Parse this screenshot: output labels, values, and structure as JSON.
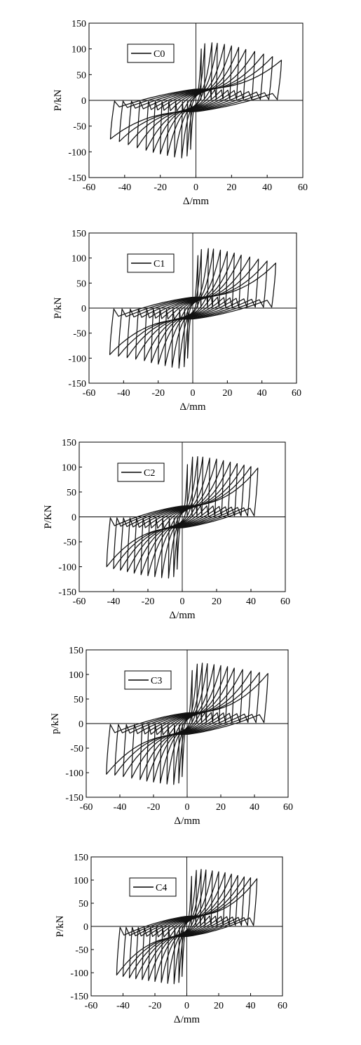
{
  "chart_data": [
    {
      "type": "line",
      "title": "",
      "legend": "C0",
      "legend_position": "top-left",
      "xlabel": "Δ/mm",
      "ylabel": "P/kN",
      "xlim": [
        -60,
        60
      ],
      "ylim": [
        -150,
        150
      ],
      "xticks": [
        -60,
        -40,
        -20,
        0,
        20,
        40,
        60
      ],
      "yticks": [
        -150,
        -100,
        -50,
        0,
        50,
        100,
        150
      ],
      "zero_lines": true,
      "grid": false,
      "cycle_peaks_pos": [
        [
          3,
          100
        ],
        [
          5,
          110
        ],
        [
          9,
          112
        ],
        [
          12,
          111
        ],
        [
          16,
          109
        ],
        [
          20,
          106
        ],
        [
          24,
          103
        ],
        [
          28,
          99
        ],
        [
          33,
          95
        ],
        [
          38,
          90
        ],
        [
          43,
          85
        ],
        [
          48,
          78
        ]
      ],
      "cycle_peaks_neg": [
        [
          -3,
          -95
        ],
        [
          -5,
          -108
        ],
        [
          -8,
          -112
        ],
        [
          -12,
          -110
        ],
        [
          -16,
          -107
        ],
        [
          -20,
          -104
        ],
        [
          -24,
          -101
        ],
        [
          -28,
          -97
        ],
        [
          -33,
          -92
        ],
        [
          -38,
          -86
        ],
        [
          -43,
          -80
        ],
        [
          -48,
          -75
        ]
      ]
    },
    {
      "type": "line",
      "title": "",
      "legend": "C1",
      "legend_position": "top-left",
      "xlabel": "Δ/mm",
      "ylabel": "P/kN",
      "xlim": [
        -60,
        60
      ],
      "ylim": [
        -150,
        150
      ],
      "xticks": [
        -60,
        -40,
        -20,
        0,
        20,
        40,
        60
      ],
      "yticks": [
        -150,
        -100,
        -50,
        0,
        50,
        100,
        150
      ],
      "zero_lines": true,
      "grid": false,
      "cycle_peaks_pos": [
        [
          3,
          105
        ],
        [
          5,
          117
        ],
        [
          9,
          119
        ],
        [
          12,
          118
        ],
        [
          16,
          116
        ],
        [
          20,
          113
        ],
        [
          24,
          110
        ],
        [
          28,
          106
        ],
        [
          33,
          102
        ],
        [
          38,
          98
        ],
        [
          43,
          94
        ],
        [
          48,
          90
        ]
      ],
      "cycle_peaks_neg": [
        [
          -3,
          -100
        ],
        [
          -5,
          -117
        ],
        [
          -8,
          -120
        ],
        [
          -12,
          -118
        ],
        [
          -16,
          -115
        ],
        [
          -20,
          -112
        ],
        [
          -24,
          -109
        ],
        [
          -28,
          -105
        ],
        [
          -33,
          -102
        ],
        [
          -38,
          -99
        ],
        [
          -43,
          -96
        ],
        [
          -48,
          -93
        ]
      ]
    },
    {
      "type": "line",
      "title": "",
      "legend": "C2",
      "legend_position": "top-left",
      "xlabel": "Δ/mm",
      "ylabel": "P/KN",
      "xlim": [
        -60,
        60
      ],
      "ylim": [
        -150,
        150
      ],
      "xticks": [
        -60,
        -40,
        -20,
        0,
        20,
        40,
        60
      ],
      "yticks": [
        -150,
        -100,
        -50,
        0,
        50,
        100,
        150
      ],
      "zero_lines": true,
      "grid": false,
      "cycle_peaks_pos": [
        [
          3,
          105
        ],
        [
          6,
          120
        ],
        [
          9,
          121
        ],
        [
          12,
          120
        ],
        [
          16,
          118
        ],
        [
          20,
          116
        ],
        [
          24,
          113
        ],
        [
          28,
          110
        ],
        [
          32,
          107
        ],
        [
          36,
          104
        ],
        [
          40,
          101
        ],
        [
          44,
          98
        ]
      ],
      "cycle_peaks_neg": [
        [
          -3,
          -105
        ],
        [
          -5,
          -120
        ],
        [
          -8,
          -123
        ],
        [
          -12,
          -122
        ],
        [
          -16,
          -120
        ],
        [
          -20,
          -118
        ],
        [
          -24,
          -116
        ],
        [
          -28,
          -113
        ],
        [
          -32,
          -110
        ],
        [
          -36,
          -107
        ],
        [
          -40,
          -104
        ],
        [
          -44,
          -100
        ]
      ]
    },
    {
      "type": "line",
      "title": "",
      "legend": "C3",
      "legend_position": "top-left",
      "xlabel": "Δ/mm",
      "ylabel": "p/kN",
      "xlim": [
        -60,
        60
      ],
      "ylim": [
        -150,
        150
      ],
      "xticks": [
        -60,
        -40,
        -20,
        0,
        20,
        40,
        60
      ],
      "yticks": [
        -150,
        -100,
        -50,
        0,
        50,
        100,
        150
      ],
      "zero_lines": true,
      "grid": false,
      "cycle_peaks_pos": [
        [
          3,
          108
        ],
        [
          6,
          121
        ],
        [
          9,
          123
        ],
        [
          12,
          122
        ],
        [
          16,
          120
        ],
        [
          20,
          118
        ],
        [
          24,
          116
        ],
        [
          28,
          113
        ],
        [
          33,
          110
        ],
        [
          38,
          107
        ],
        [
          43,
          104
        ],
        [
          48,
          102
        ]
      ],
      "cycle_peaks_neg": [
        [
          -3,
          -108
        ],
        [
          -5,
          -121
        ],
        [
          -8,
          -124
        ],
        [
          -12,
          -123
        ],
        [
          -16,
          -121
        ],
        [
          -20,
          -119
        ],
        [
          -24,
          -117
        ],
        [
          -28,
          -114
        ],
        [
          -33,
          -111
        ],
        [
          -38,
          -108
        ],
        [
          -43,
          -105
        ],
        [
          -48,
          -103
        ]
      ]
    },
    {
      "type": "line",
      "title": "",
      "legend": "C4",
      "legend_position": "top-left",
      "xlabel": "Δ/mm",
      "ylabel": "P/kN",
      "xlim": [
        -60,
        60
      ],
      "ylim": [
        -150,
        150
      ],
      "xticks": [
        -60,
        -40,
        -20,
        0,
        20,
        40,
        60
      ],
      "yticks": [
        -150,
        -100,
        -50,
        0,
        50,
        100,
        150
      ],
      "zero_lines": true,
      "grid": false,
      "cycle_peaks_pos": [
        [
          3,
          108
        ],
        [
          6,
          121
        ],
        [
          9,
          123
        ],
        [
          12,
          122
        ],
        [
          16,
          120
        ],
        [
          20,
          118
        ],
        [
          24,
          116
        ],
        [
          28,
          113
        ],
        [
          32,
          110
        ],
        [
          36,
          107
        ],
        [
          40,
          105
        ],
        [
          44,
          103
        ]
      ],
      "cycle_peaks_neg": [
        [
          -3,
          -108
        ],
        [
          -5,
          -121
        ],
        [
          -8,
          -124
        ],
        [
          -12,
          -123
        ],
        [
          -16,
          -121
        ],
        [
          -20,
          -119
        ],
        [
          -24,
          -117
        ],
        [
          -28,
          -115
        ],
        [
          -32,
          -113
        ],
        [
          -36,
          -111
        ],
        [
          -40,
          -108
        ],
        [
          -44,
          -105
        ]
      ]
    }
  ]
}
